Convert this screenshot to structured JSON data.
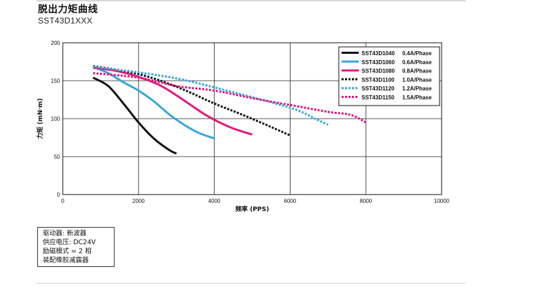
{
  "header": {
    "title": "脱出力矩曲线",
    "subtitle": "SST43D1XXX"
  },
  "notes": [
    "驱动器: 新波器",
    "供应电压: DC24V",
    "励磁模式 = 2 相",
    "装配橡胶减震器"
  ],
  "chart_data": {
    "type": "line",
    "title": "",
    "xlabel": "频率 (PPS)",
    "ylabel": "力矩 (mN·m)",
    "xlim": [
      0,
      10000
    ],
    "ylim": [
      0,
      200
    ],
    "x_ticks": [
      "0",
      "2000",
      "4000",
      "6000",
      "8000",
      "10000"
    ],
    "y_ticks": [
      "0",
      "50",
      "100",
      "150",
      "200"
    ],
    "grid": true,
    "legend_position": "top-right",
    "series": [
      {
        "name": "SST43D1040",
        "current": "0.4A/Phase",
        "color": "#111111",
        "style": "solid",
        "points": [
          [
            800,
            154
          ],
          [
            1200,
            143
          ],
          [
            1600,
            120
          ],
          [
            2000,
            95
          ],
          [
            2400,
            74
          ],
          [
            2800,
            59
          ],
          [
            3000,
            54
          ]
        ]
      },
      {
        "name": "SST43D1060",
        "current": "0.6A/Phase",
        "color": "#35a8dc",
        "style": "solid",
        "points": [
          [
            800,
            168
          ],
          [
            1200,
            160
          ],
          [
            1600,
            148
          ],
          [
            2000,
            137
          ],
          [
            2400,
            123
          ],
          [
            2800,
            106
          ],
          [
            3200,
            92
          ],
          [
            3600,
            81
          ],
          [
            4000,
            74
          ]
        ]
      },
      {
        "name": "SST43D1080",
        "current": "0.8A/Phase",
        "color": "#e0187e",
        "style": "solid",
        "points": [
          [
            800,
            167
          ],
          [
            1400,
            163
          ],
          [
            2000,
            155
          ],
          [
            2600,
            143
          ],
          [
            3200,
            124
          ],
          [
            3800,
            104
          ],
          [
            4400,
            89
          ],
          [
            5000,
            79
          ]
        ]
      },
      {
        "name": "SST43D1100",
        "current": "1.0A/Phase",
        "color": "#111111",
        "style": "dashed",
        "points": [
          [
            800,
            169
          ],
          [
            1600,
            163
          ],
          [
            2400,
            153
          ],
          [
            3200,
            138
          ],
          [
            4000,
            120
          ],
          [
            4800,
            104
          ],
          [
            5500,
            89
          ],
          [
            6000,
            78
          ]
        ]
      },
      {
        "name": "SST43D1120",
        "current": "1.2A/Phase",
        "color": "#35a8dc",
        "style": "dashed",
        "points": [
          [
            800,
            168
          ],
          [
            2000,
            161
          ],
          [
            3200,
            151
          ],
          [
            4400,
            136
          ],
          [
            5400,
            123
          ],
          [
            6200,
            111
          ],
          [
            6700,
            99
          ],
          [
            7000,
            92
          ]
        ]
      },
      {
        "name": "SST43D1150",
        "current": "1.5A/Phase",
        "color": "#e0187e",
        "style": "dashed",
        "points": [
          [
            800,
            160
          ],
          [
            2000,
            154
          ],
          [
            3000,
            143
          ],
          [
            4000,
            137
          ],
          [
            5000,
            127
          ],
          [
            6000,
            118
          ],
          [
            7000,
            109
          ],
          [
            7600,
            105
          ],
          [
            8000,
            95
          ]
        ]
      }
    ]
  }
}
